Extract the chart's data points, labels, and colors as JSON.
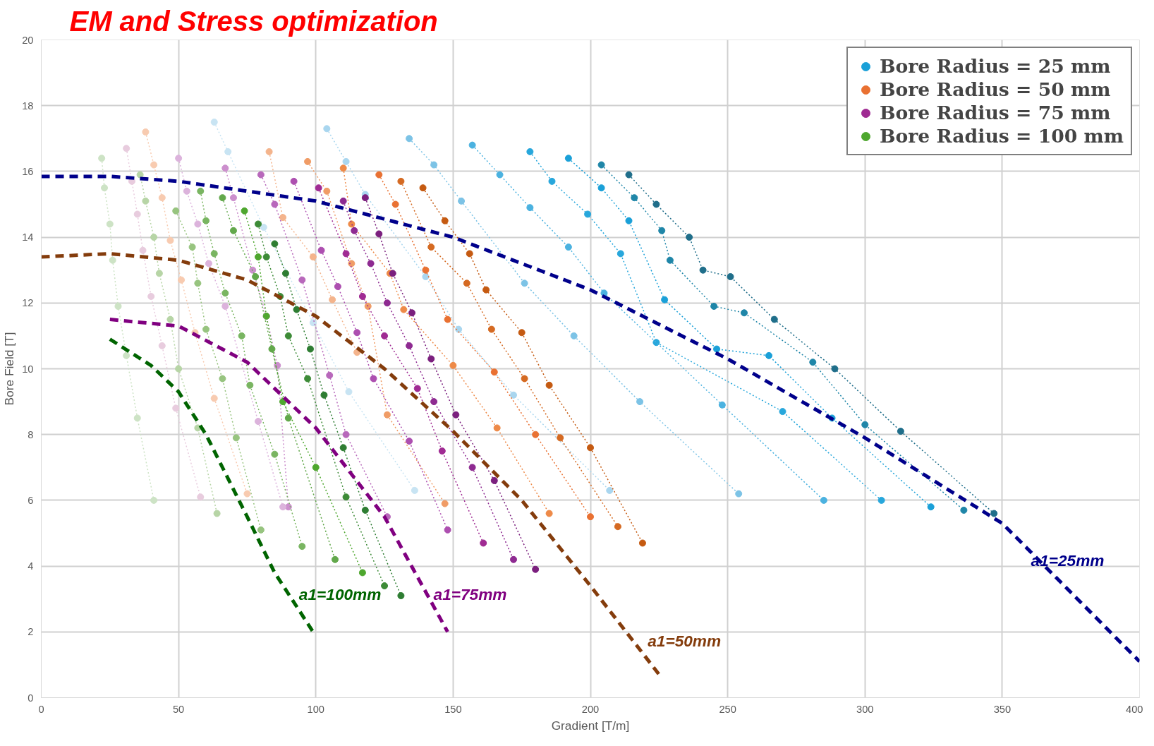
{
  "chart_data": {
    "type": "line",
    "title": "EM and Stress optimization",
    "xlabel": "Gradient [T/m]",
    "ylabel": "Bore Field [T]",
    "xlim": [
      0,
      400
    ],
    "xticks": [
      0,
      50,
      100,
      150,
      200,
      250,
      300,
      350,
      400
    ],
    "ylim": [
      0,
      20
    ],
    "yticks": [
      0,
      2,
      4,
      6,
      8,
      10,
      12,
      14,
      16,
      18,
      20
    ],
    "grid": true,
    "legend": "top right",
    "marker": "circle",
    "line_style": "dotted",
    "series": [
      {
        "color": "#1f6e8a",
        "x": [
          214,
          224,
          236,
          241,
          251,
          267,
          289,
          313,
          347
        ],
        "values": [
          15.9,
          15.0,
          14.0,
          13.0,
          12.8,
          11.5,
          10.0,
          8.1,
          5.6
        ]
      },
      {
        "color": "#1f86a8",
        "x": [
          204,
          216,
          226,
          229,
          245,
          256,
          281,
          300,
          336
        ],
        "values": [
          16.2,
          15.2,
          14.2,
          13.3,
          11.9,
          11.7,
          10.2,
          8.3,
          5.7
        ]
      },
      {
        "name": "Bore Radius = 25 mm",
        "color": "#1aa0d8",
        "x": [
          192,
          204,
          214,
          227,
          246,
          265,
          288,
          324
        ],
        "values": [
          16.4,
          15.5,
          14.5,
          12.1,
          10.6,
          10.4,
          8.5,
          5.8
        ]
      },
      {
        "color": "#27a7dc",
        "x": [
          178,
          186,
          199,
          211,
          224,
          270,
          306
        ],
        "values": [
          16.6,
          15.7,
          14.7,
          13.5,
          10.8,
          8.7,
          6.0
        ]
      },
      {
        "color": "#4bb2e0",
        "x": [
          157,
          167,
          178,
          192,
          205,
          248,
          285
        ],
        "values": [
          16.8,
          15.9,
          14.9,
          13.7,
          12.3,
          8.9,
          6.0
        ]
      },
      {
        "color": "#7cc3e6",
        "x": [
          134,
          143,
          153,
          176,
          194,
          218,
          254
        ],
        "values": [
          17.0,
          16.2,
          15.1,
          12.6,
          11.0,
          9.0,
          6.2
        ]
      },
      {
        "color": "#a9d6ef",
        "x": [
          104,
          111,
          118,
          140,
          152,
          172,
          207
        ],
        "values": [
          17.3,
          16.3,
          15.3,
          12.8,
          11.2,
          9.2,
          6.3
        ]
      },
      {
        "color": "#c8e4f3",
        "x": [
          63,
          68,
          81,
          99,
          112,
          136
        ],
        "values": [
          17.5,
          16.6,
          14.3,
          11.4,
          9.3,
          6.3
        ]
      },
      {
        "color": "#c55a11",
        "x": [
          139,
          147,
          156,
          162,
          175,
          185,
          200,
          219
        ],
        "values": [
          15.5,
          14.5,
          13.5,
          12.4,
          11.1,
          9.5,
          7.6,
          4.7
        ]
      },
      {
        "color": "#d56a22",
        "x": [
          131,
          142,
          155,
          164,
          176,
          189,
          210
        ],
        "values": [
          15.7,
          13.7,
          12.6,
          11.2,
          9.7,
          7.9,
          5.2
        ]
      },
      {
        "name": "Bore Radius = 50 mm",
        "color": "#e97132",
        "x": [
          123,
          129,
          140,
          148,
          165,
          180,
          200
        ],
        "values": [
          15.9,
          15.0,
          13.0,
          11.5,
          9.9,
          8.0,
          5.5
        ]
      },
      {
        "color": "#ee8a48",
        "x": [
          110,
          113,
          127,
          132,
          150,
          166,
          185
        ],
        "values": [
          16.1,
          14.4,
          12.9,
          11.8,
          10.1,
          8.2,
          5.6
        ]
      },
      {
        "color": "#f09c66",
        "x": [
          97,
          104,
          113,
          119,
          126,
          147
        ],
        "values": [
          16.3,
          15.4,
          13.2,
          11.9,
          8.6,
          5.9
        ]
      },
      {
        "color": "#f4b48c",
        "x": [
          83,
          88,
          99,
          106,
          115
        ],
        "values": [
          16.6,
          14.6,
          13.4,
          12.1,
          10.5
        ]
      },
      {
        "color": "#f8cbb0",
        "x": [
          38,
          41,
          44,
          47,
          51,
          56,
          63,
          75
        ],
        "values": [
          17.2,
          16.2,
          15.2,
          13.9,
          12.7,
          11.1,
          9.1,
          6.2
        ]
      },
      {
        "color": "#7b1f7e",
        "x": [
          118,
          123,
          128,
          135,
          142,
          151,
          165,
          180
        ],
        "values": [
          15.2,
          14.1,
          12.9,
          11.7,
          10.3,
          8.6,
          6.6,
          3.9
        ]
      },
      {
        "color": "#8e2a91",
        "x": [
          110,
          114,
          120,
          126,
          134,
          143,
          157,
          172
        ],
        "values": [
          15.1,
          14.2,
          13.2,
          12.0,
          10.7,
          9.0,
          7.0,
          4.2
        ]
      },
      {
        "name": "Bore Radius = 75 mm",
        "color": "#a02b93",
        "x": [
          101,
          111,
          117,
          125,
          137,
          146,
          161
        ],
        "values": [
          15.5,
          13.5,
          12.2,
          11.0,
          9.4,
          7.5,
          4.7
        ]
      },
      {
        "color": "#ad4fb0",
        "x": [
          92,
          102,
          108,
          115,
          121,
          134,
          148
        ],
        "values": [
          15.7,
          13.6,
          12.5,
          11.1,
          9.7,
          7.8,
          5.1
        ]
      },
      {
        "color": "#b868bb",
        "x": [
          80,
          85,
          95,
          105,
          111,
          126
        ],
        "values": [
          15.9,
          15.0,
          12.7,
          9.8,
          8.0,
          5.5
        ]
      },
      {
        "color": "#cc8fcd",
        "x": [
          67,
          70,
          77,
          82,
          86,
          90
        ],
        "values": [
          16.1,
          15.2,
          13.0,
          11.6,
          10.1,
          5.8
        ]
      },
      {
        "color": "#dcb3dc",
        "x": [
          50,
          53,
          57,
          61,
          67,
          79,
          88
        ],
        "values": [
          16.4,
          15.4,
          14.4,
          13.2,
          11.9,
          8.4,
          5.8
        ]
      },
      {
        "color": "#e8ccde",
        "x": [
          31,
          33,
          35,
          37,
          40,
          44,
          49,
          58
        ],
        "values": [
          16.7,
          15.7,
          14.7,
          13.6,
          12.2,
          10.7,
          8.8,
          6.1
        ]
      },
      {
        "color": "#2e7d32",
        "x": [
          85,
          89,
          93,
          98,
          103,
          110,
          118,
          131
        ],
        "values": [
          13.8,
          12.9,
          11.8,
          10.6,
          9.2,
          7.6,
          5.7,
          3.1
        ]
      },
      {
        "color": "#3d8b37",
        "x": [
          79,
          82,
          87,
          90,
          97,
          111,
          125
        ],
        "values": [
          14.4,
          13.4,
          12.2,
          11.0,
          9.7,
          6.1,
          3.4
        ]
      },
      {
        "name": "Bore Radius = 100 mm",
        "color": "#4ea72e",
        "x": [
          74,
          79,
          82,
          88,
          100,
          117
        ],
        "values": [
          14.8,
          13.4,
          11.6,
          9.0,
          7.0,
          3.8
        ]
      },
      {
        "color": "#62a84b",
        "x": [
          66,
          70,
          78,
          84,
          90,
          107
        ],
        "values": [
          15.2,
          14.2,
          12.8,
          10.6,
          8.5,
          4.2
        ]
      },
      {
        "color": "#79b561",
        "x": [
          58,
          60,
          63,
          67,
          73,
          76,
          85,
          95
        ],
        "values": [
          15.4,
          14.5,
          13.5,
          12.3,
          11.0,
          9.5,
          7.4,
          4.6
        ]
      },
      {
        "color": "#97c47f",
        "x": [
          49,
          55,
          57,
          60,
          66,
          71,
          80
        ],
        "values": [
          14.8,
          13.7,
          12.6,
          11.2,
          9.7,
          7.9,
          5.1
        ]
      },
      {
        "color": "#b7d5a6",
        "x": [
          36,
          38,
          41,
          43,
          47,
          50,
          57,
          64
        ],
        "values": [
          15.9,
          15.1,
          14.0,
          12.9,
          11.5,
          10.0,
          8.2,
          5.6
        ]
      },
      {
        "color": "#cde3c5",
        "x": [
          22,
          23,
          25,
          26,
          28,
          31,
          35,
          41
        ],
        "values": [
          16.4,
          15.5,
          14.4,
          13.3,
          11.9,
          10.4,
          8.5,
          6.0
        ]
      },
      {
        "name": "a1=25mm",
        "color": "#00008b",
        "line_style": "dashed",
        "marker": "none",
        "x": [
          0,
          25,
          50,
          100,
          150,
          200,
          250,
          300,
          350,
          400
        ],
        "values": [
          15.85,
          15.85,
          15.7,
          15.1,
          14.0,
          12.4,
          10.3,
          7.9,
          5.3,
          1.1
        ]
      },
      {
        "name": "a1=50mm",
        "color": "#843c0c",
        "line_style": "dashed",
        "marker": "none",
        "x": [
          0,
          25,
          50,
          75,
          100,
          125,
          150,
          175,
          200,
          226
        ],
        "values": [
          13.4,
          13.5,
          13.3,
          12.7,
          11.6,
          10.0,
          8.1,
          6.0,
          3.4,
          0.6
        ]
      },
      {
        "name": "a1=75mm",
        "color": "#800080",
        "line_style": "dashed",
        "marker": "none",
        "x": [
          25,
          50,
          75,
          100,
          125,
          148
        ],
        "values": [
          11.5,
          11.3,
          10.2,
          8.2,
          5.5,
          2.0
        ]
      },
      {
        "name": "a1=100mm",
        "color": "#006400",
        "line_style": "dashed",
        "marker": "none",
        "x": [
          25,
          40,
          50,
          60,
          75,
          85,
          99
        ],
        "values": [
          10.9,
          10.1,
          9.3,
          8.0,
          5.5,
          3.8,
          2.0
        ]
      }
    ]
  }
}
